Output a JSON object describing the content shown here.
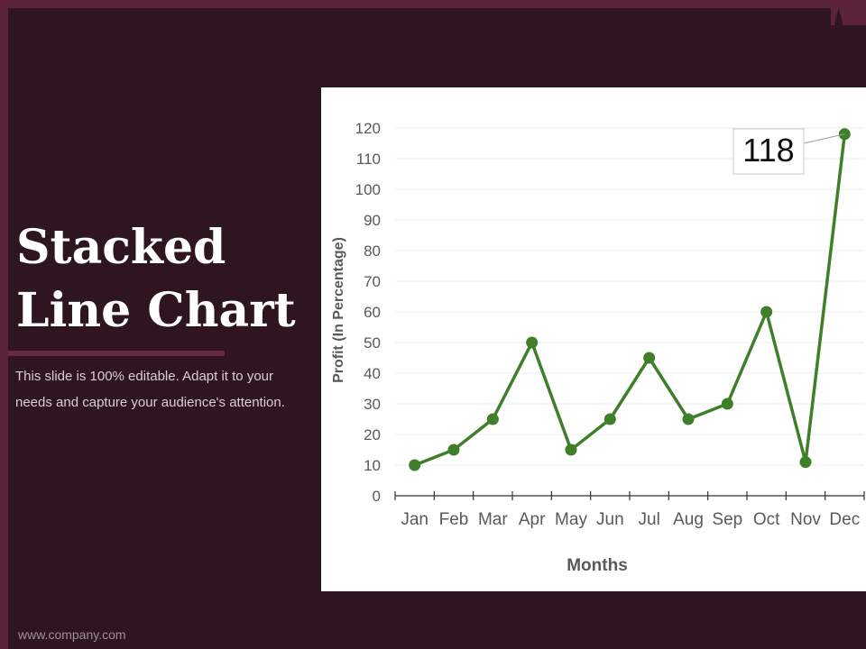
{
  "slide": {
    "title_line1": "Stacked",
    "title_line2": "Line Chart",
    "description": "This slide is 100% editable. Adapt it to your needs and capture your audience's attention.",
    "footer": "www.company.com"
  },
  "colors": {
    "background": "#2e1520",
    "frame": "#5c2438",
    "line": "#3f7f2a",
    "chart_bg": "#ffffff"
  },
  "chart_data": {
    "type": "line",
    "categories": [
      "Jan",
      "Feb",
      "Mar",
      "Apr",
      "May",
      "Jun",
      "Jul",
      "Aug",
      "Sep",
      "Oct",
      "Nov",
      "Dec"
    ],
    "series": [
      {
        "values": [
          10,
          15,
          25,
          50,
          15,
          25,
          45,
          25,
          30,
          60,
          11,
          118
        ]
      }
    ],
    "xlabel": "Months",
    "ylabel": "Profit  (In Percentage)",
    "ylim": [
      0,
      120
    ],
    "yticks": [
      0,
      10,
      20,
      30,
      40,
      50,
      60,
      70,
      80,
      90,
      100,
      110,
      120
    ],
    "grid": true,
    "legend": "none",
    "annotation": {
      "label": "118",
      "category": "Dec"
    }
  }
}
